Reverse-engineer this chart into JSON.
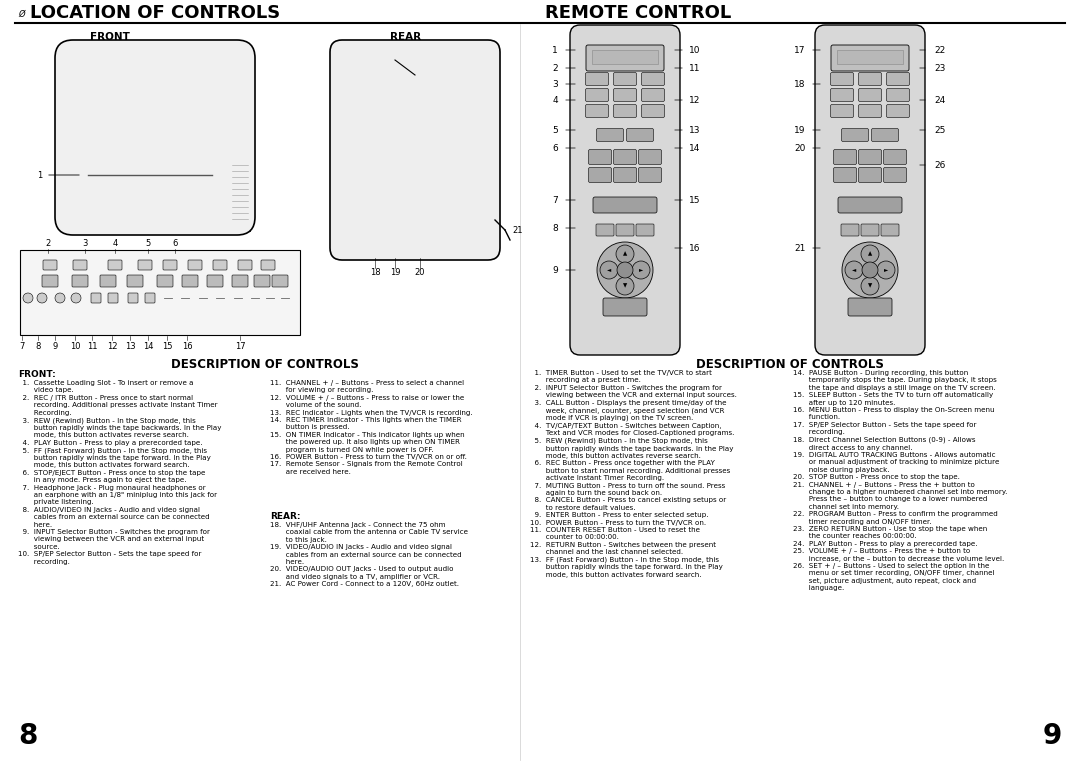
{
  "title_left": "LOCATION OF CONTROLS",
  "title_right": "REMOTE CONTROL",
  "page_number_left": "8",
  "page_number_right": "9",
  "small_char_top": "Ø",
  "front_label": "FRONT",
  "rear_label": "REAR",
  "desc_title_left": "DESCRIPTION OF CONTROLS",
  "desc_title_right": "DESCRIPTION OF CONTROLS",
  "front_section_label": "FRONT:",
  "rear_section_label": "REAR:",
  "bg_color": "#ffffff",
  "text_color": "#000000",
  "line_color": "#000000"
}
